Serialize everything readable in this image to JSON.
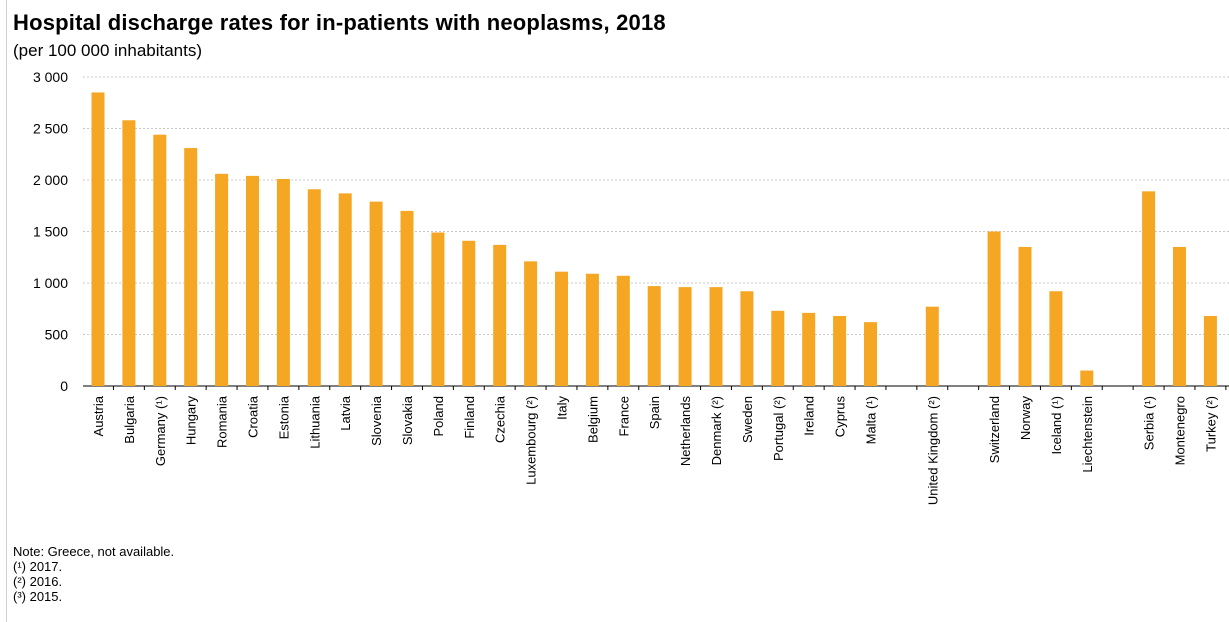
{
  "chart_data": {
    "type": "bar",
    "title": "Hospital discharge rates for in-patients with neoplasms, 2018",
    "subtitle": "(per 100 000 inhabitants)",
    "categories": [
      "Austria",
      "Bulgaria",
      "Germany (¹)",
      "Hungary",
      "Romania",
      "Croatia",
      "Estonia",
      "Lithuania",
      "Latvia",
      "Slovenia",
      "Slovakia",
      "Poland",
      "Finland",
      "Czechia",
      "Luxembourg (²)",
      "Italy",
      "Belgium",
      "France",
      "Spain",
      "Netherlands",
      "Denmark (²)",
      "Sweden",
      "Portugal (²)",
      "Ireland",
      "Cyprus",
      "Malta (¹)",
      "",
      "United Kingdom (²)",
      "",
      "Switzerland",
      "Norway",
      "Iceland (¹)",
      "Liechtenstein",
      "",
      "Serbia (¹)",
      "Montenegro",
      "Turkey (²)"
    ],
    "values": [
      2850,
      2580,
      2440,
      2310,
      2060,
      2040,
      2010,
      1910,
      1870,
      1790,
      1700,
      1490,
      1410,
      1370,
      1210,
      1110,
      1090,
      1070,
      970,
      960,
      960,
      920,
      730,
      710,
      680,
      620,
      null,
      770,
      null,
      1500,
      1350,
      920,
      150,
      null,
      1890,
      1350,
      680
    ],
    "ylim": [
      0,
      3000
    ],
    "yticks": [
      0,
      500,
      1000,
      1500,
      2000,
      2500,
      3000
    ],
    "ytick_labels": [
      "0",
      "500",
      "1 000",
      "1 500",
      "2 000",
      "2 500",
      "3 000"
    ],
    "grid": true,
    "bar_color": "#f5a623",
    "xlabel": "",
    "ylabel": ""
  },
  "notes": [
    "Note: Greece, not available.",
    "(¹) 2017.",
    "(²) 2016.",
    "(³) 2015."
  ]
}
